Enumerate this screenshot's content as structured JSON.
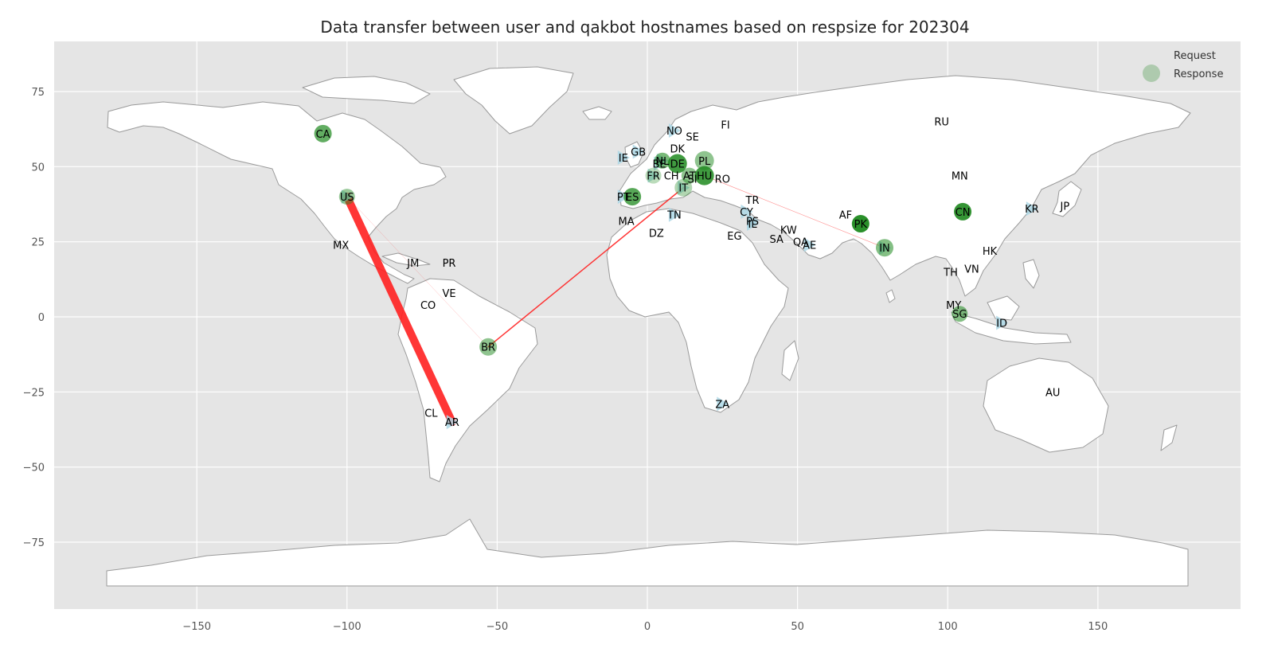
{
  "chart_data": {
    "type": "map",
    "title": "Data transfer between user and qakbot hostnames based on respsize for 202304",
    "xlim": [
      -190,
      190
    ],
    "ylim": [
      -98,
      93
    ],
    "xticks": [
      -150,
      -100,
      -50,
      0,
      50,
      100,
      150
    ],
    "yticks": [
      75,
      50,
      25,
      0,
      -25,
      -50,
      -75
    ],
    "xtick_labels": [
      "−150",
      "−100",
      "−50",
      "0",
      "50",
      "100",
      "150"
    ],
    "ytick_labels": [
      "75",
      "50",
      "25",
      "0",
      "−25",
      "−50",
      "−75"
    ],
    "grid": true,
    "legend": {
      "placement": "top-right",
      "entries": [
        {
          "label": "Request",
          "marker": "triangle",
          "color": "#add8e6"
        },
        {
          "label": "Response",
          "marker": "circle",
          "color": "#2e8b2e"
        }
      ]
    },
    "countries": [
      {
        "code": "CA",
        "lon": -108,
        "lat": 61
      },
      {
        "code": "US",
        "lon": -100,
        "lat": 40
      },
      {
        "code": "MX",
        "lon": -102,
        "lat": 24
      },
      {
        "code": "JM",
        "lon": -78,
        "lat": 18
      },
      {
        "code": "PR",
        "lon": -66,
        "lat": 18
      },
      {
        "code": "VE",
        "lon": -66,
        "lat": 8
      },
      {
        "code": "CO",
        "lon": -73,
        "lat": 4
      },
      {
        "code": "BR",
        "lon": -53,
        "lat": -10
      },
      {
        "code": "CL",
        "lon": -72,
        "lat": -32
      },
      {
        "code": "AR",
        "lon": -65,
        "lat": -35
      },
      {
        "code": "NO",
        "lon": 9,
        "lat": 62
      },
      {
        "code": "SE",
        "lon": 15,
        "lat": 60
      },
      {
        "code": "FI",
        "lon": 26,
        "lat": 64
      },
      {
        "code": "GB",
        "lon": -3,
        "lat": 55
      },
      {
        "code": "IE",
        "lon": -8,
        "lat": 53
      },
      {
        "code": "DK",
        "lon": 10,
        "lat": 56
      },
      {
        "code": "NL",
        "lon": 5,
        "lat": 52
      },
      {
        "code": "BE",
        "lon": 4,
        "lat": 51
      },
      {
        "code": "DE",
        "lon": 10,
        "lat": 51
      },
      {
        "code": "PL",
        "lon": 19,
        "lat": 52
      },
      {
        "code": "FR",
        "lon": 2,
        "lat": 47
      },
      {
        "code": "CH",
        "lon": 8,
        "lat": 47
      },
      {
        "code": "AT",
        "lon": 14,
        "lat": 47
      },
      {
        "code": "SI",
        "lon": 15,
        "lat": 46
      },
      {
        "code": "HU",
        "lon": 19,
        "lat": 47
      },
      {
        "code": "RO",
        "lon": 25,
        "lat": 46
      },
      {
        "code": "IT",
        "lon": 12,
        "lat": 43
      },
      {
        "code": "PT",
        "lon": -8,
        "lat": 40
      },
      {
        "code": "ES",
        "lon": -5,
        "lat": 40
      },
      {
        "code": "MA",
        "lon": -7,
        "lat": 32
      },
      {
        "code": "DZ",
        "lon": 3,
        "lat": 28
      },
      {
        "code": "TN",
        "lon": 9,
        "lat": 34
      },
      {
        "code": "TR",
        "lon": 35,
        "lat": 39
      },
      {
        "code": "CY",
        "lon": 33,
        "lat": 35
      },
      {
        "code": "PS",
        "lon": 35,
        "lat": 32
      },
      {
        "code": "IL",
        "lon": 35,
        "lat": 31
      },
      {
        "code": "EG",
        "lon": 29,
        "lat": 27
      },
      {
        "code": "SA",
        "lon": 43,
        "lat": 26
      },
      {
        "code": "KW",
        "lon": 47,
        "lat": 29
      },
      {
        "code": "QA",
        "lon": 51,
        "lat": 25
      },
      {
        "code": "AE",
        "lon": 54,
        "lat": 24
      },
      {
        "code": "AF",
        "lon": 66,
        "lat": 34
      },
      {
        "code": "PK",
        "lon": 71,
        "lat": 31
      },
      {
        "code": "IN",
        "lon": 79,
        "lat": 23
      },
      {
        "code": "CN",
        "lon": 105,
        "lat": 35
      },
      {
        "code": "MN",
        "lon": 104,
        "lat": 47
      },
      {
        "code": "RU",
        "lon": 98,
        "lat": 65
      },
      {
        "code": "KR",
        "lon": 128,
        "lat": 36
      },
      {
        "code": "JP",
        "lon": 139,
        "lat": 37
      },
      {
        "code": "HK",
        "lon": 114,
        "lat": 22
      },
      {
        "code": "TH",
        "lon": 101,
        "lat": 15
      },
      {
        "code": "VN",
        "lon": 108,
        "lat": 16
      },
      {
        "code": "MY",
        "lon": 102,
        "lat": 4
      },
      {
        "code": "SG",
        "lon": 104,
        "lat": 1
      },
      {
        "code": "ID",
        "lon": 118,
        "lat": -2
      },
      {
        "code": "ZA",
        "lon": 25,
        "lat": -29
      },
      {
        "code": "AU",
        "lon": 135,
        "lat": -25
      }
    ],
    "requests": [
      "US",
      "AR",
      "GB",
      "IE",
      "NO",
      "PT",
      "IT",
      "TN",
      "CY",
      "PS",
      "IL",
      "AE",
      "IN",
      "KR",
      "ID",
      "ZA",
      "NL",
      "BE",
      "FR"
    ],
    "responses": [
      {
        "code": "CA",
        "size": 22,
        "alpha": 0.7
      },
      {
        "code": "US",
        "size": 20,
        "alpha": 0.45
      },
      {
        "code": "BR",
        "size": 22,
        "alpha": 0.5
      },
      {
        "code": "ES",
        "size": 22,
        "alpha": 0.75
      },
      {
        "code": "NL",
        "size": 20,
        "alpha": 0.6
      },
      {
        "code": "DE",
        "size": 24,
        "alpha": 0.85
      },
      {
        "code": "PL",
        "size": 24,
        "alpha": 0.5
      },
      {
        "code": "HU",
        "size": 24,
        "alpha": 0.85
      },
      {
        "code": "AT",
        "size": 20,
        "alpha": 0.5
      },
      {
        "code": "FR",
        "size": 20,
        "alpha": 0.3
      },
      {
        "code": "IT",
        "size": 22,
        "alpha": 0.35
      },
      {
        "code": "PK",
        "size": 22,
        "alpha": 0.95
      },
      {
        "code": "CN",
        "size": 22,
        "alpha": 0.9
      },
      {
        "code": "IN",
        "size": 22,
        "alpha": 0.55
      },
      {
        "code": "SG",
        "size": 20,
        "alpha": 0.55
      }
    ],
    "flows": [
      {
        "from": "US",
        "to": "AR",
        "weight": 10
      },
      {
        "from": "BR",
        "to": "IT",
        "weight": 1.5
      },
      {
        "from": "HU",
        "to": "IN",
        "weight": 0.6
      },
      {
        "from": "US",
        "to": "BR",
        "weight": 0.3
      }
    ]
  }
}
